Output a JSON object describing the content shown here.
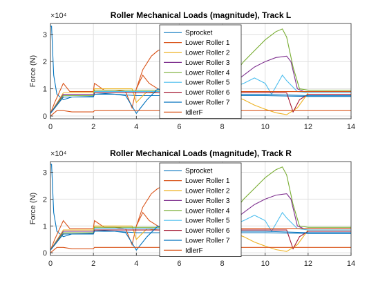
{
  "chart_data": [
    {
      "type": "line",
      "title": "Roller Mechanical Loads (magnitude), Track L",
      "xlabel": "",
      "ylabel": "Force (N)",
      "y_multiplier_label": "×10⁴",
      "xlim": [
        0,
        14
      ],
      "ylim": [
        -0.1,
        3.4
      ],
      "y_unit_scale": 10000,
      "xticks": [
        0,
        2,
        4,
        6,
        8,
        10,
        12,
        14
      ],
      "yticks": [
        0,
        1,
        2,
        3
      ],
      "grid": true,
      "legend_position": "top-center",
      "series": [
        {
          "name": "Sprocket",
          "color": "#0072BD",
          "x": [
            0,
            0.05,
            0.15,
            0.3,
            0.6,
            1.0,
            2.0,
            2.05,
            4.0,
            6.0,
            8.0,
            10.0,
            12.0,
            14.0
          ],
          "y": [
            3.3,
            3.3,
            1.5,
            0.8,
            0.6,
            0.7,
            0.72,
            0.85,
            0.75,
            0.75,
            0.75,
            0.75,
            0.72,
            0.72
          ]
        },
        {
          "name": "Lower Roller 1",
          "color": "#D95319",
          "x": [
            0,
            0.2,
            0.6,
            0.9,
            1.5,
            2.0,
            2.05,
            2.5,
            3.0,
            3.5,
            3.8,
            4.0,
            4.3,
            4.6,
            5.0,
            5.5,
            6.0,
            8.0,
            10.0,
            12.0,
            14.0
          ],
          "y": [
            0.1,
            0.5,
            1.2,
            0.9,
            0.9,
            0.9,
            1.2,
            0.95,
            0.95,
            0.9,
            0.3,
            1.0,
            1.5,
            1.2,
            1.0,
            0.9,
            0.9,
            0.9,
            0.9,
            0.9,
            0.9
          ]
        },
        {
          "name": "Lower Roller 2",
          "color": "#EDB120",
          "x": [
            0,
            0.6,
            2.0,
            2.05,
            3.0,
            3.5,
            3.8,
            4.0,
            4.5,
            5.0,
            6.0,
            8.0,
            8.5,
            9.0,
            9.5,
            10.0,
            10.5,
            11.0,
            11.5,
            12.0,
            14.0
          ],
          "y": [
            0.1,
            0.85,
            0.85,
            1.0,
            1.0,
            1.0,
            1.0,
            0.5,
            0.9,
            0.85,
            0.85,
            0.85,
            0.75,
            0.6,
            0.4,
            0.25,
            0.12,
            0.05,
            0.3,
            0.85,
            0.85
          ]
        },
        {
          "name": "Lower Roller 3",
          "color": "#7E2F8E",
          "x": [
            0,
            0.6,
            2.0,
            2.05,
            6.0,
            8.0,
            8.5,
            9.0,
            9.5,
            10.0,
            10.5,
            11.0,
            11.2,
            11.5,
            11.8,
            12.0,
            14.0
          ],
          "y": [
            0.1,
            0.8,
            0.8,
            0.9,
            0.9,
            0.9,
            1.2,
            1.5,
            1.8,
            2.0,
            2.15,
            2.2,
            2.0,
            1.0,
            0.9,
            0.9,
            0.9
          ]
        },
        {
          "name": "Lower Roller 4",
          "color": "#77AC30",
          "x": [
            0,
            0.6,
            2.0,
            2.05,
            6.0,
            8.0,
            8.5,
            9.0,
            9.5,
            10.0,
            10.5,
            10.8,
            11.0,
            11.3,
            11.6,
            12.0,
            14.0
          ],
          "y": [
            0.1,
            0.75,
            0.75,
            0.95,
            0.95,
            1.0,
            1.5,
            2.0,
            2.4,
            2.8,
            3.1,
            3.2,
            2.9,
            1.8,
            1.0,
            0.95,
            0.95
          ]
        },
        {
          "name": "Lower Roller 5",
          "color": "#4DBEEE",
          "x": [
            0,
            0.6,
            2.0,
            2.05,
            6.0,
            8.0,
            9.0,
            9.5,
            10.0,
            10.3,
            10.8,
            11.0,
            11.5,
            12.0,
            14.0
          ],
          "y": [
            0.1,
            0.7,
            0.7,
            0.9,
            0.9,
            0.9,
            1.2,
            1.4,
            1.2,
            0.8,
            1.5,
            1.3,
            0.9,
            0.85,
            0.85
          ]
        },
        {
          "name": "Lower Roller 6",
          "color": "#A2142F",
          "x": [
            0,
            0.6,
            2.0,
            2.05,
            6.0,
            8.0,
            10.0,
            11.0,
            11.3,
            11.6,
            12.0,
            14.0
          ],
          "y": [
            0.1,
            0.7,
            0.7,
            0.85,
            0.85,
            0.85,
            0.85,
            0.85,
            0.15,
            0.6,
            0.8,
            0.8
          ]
        },
        {
          "name": "Lower Roller 7",
          "color": "#0072BD",
          "x": [
            0,
            0.6,
            2.0,
            2.05,
            3.0,
            3.5,
            4.0,
            4.5,
            5.0,
            5.5,
            6.0,
            8.0,
            10.0,
            12.0,
            14.0
          ],
          "y": [
            0.1,
            0.7,
            0.7,
            0.8,
            0.8,
            0.75,
            0.1,
            0.6,
            1.0,
            0.8,
            0.8,
            0.8,
            0.8,
            0.75,
            0.75
          ]
        },
        {
          "name": "IdlerF",
          "color": "#D95319",
          "x": [
            0,
            0.3,
            0.6,
            1.0,
            2.0,
            2.05,
            3.0,
            4.0,
            5.0,
            6.0,
            8.0,
            10.0,
            12.0,
            14.0
          ],
          "y": [
            0.0,
            0.2,
            0.2,
            0.15,
            0.15,
            0.2,
            0.2,
            0.2,
            0.2,
            0.2,
            0.2,
            0.2,
            0.2,
            0.2
          ]
        },
        {
          "name": "",
          "color": "#D95319",
          "x": [
            4.0,
            4.3,
            4.7,
            5.0,
            5.3,
            5.6,
            6.0,
            6.5,
            7.0,
            8.0,
            14.0
          ],
          "y": [
            1.0,
            1.7,
            2.2,
            2.4,
            2.5,
            2.55,
            1.2,
            1.0,
            1.0,
            0.9,
            0.9
          ]
        }
      ]
    },
    {
      "type": "line",
      "title": "Roller Mechanical Loads (magnitude), Track R",
      "xlabel": "",
      "ylabel": "Force (N)",
      "y_multiplier_label": "×10⁴",
      "xlim": [
        0,
        14
      ],
      "ylim": [
        -0.1,
        3.4
      ],
      "y_unit_scale": 10000,
      "xticks": [
        0,
        2,
        4,
        6,
        8,
        10,
        12,
        14
      ],
      "yticks": [
        0,
        1,
        2,
        3
      ],
      "grid": true,
      "legend_position": "top-center",
      "series": [
        {
          "name": "Sprocket",
          "color": "#0072BD",
          "x": [
            0,
            0.05,
            0.15,
            0.3,
            0.6,
            1.0,
            2.0,
            2.05,
            4.0,
            6.0,
            8.0,
            10.0,
            12.0,
            14.0
          ],
          "y": [
            3.3,
            3.3,
            1.5,
            0.8,
            0.6,
            0.7,
            0.72,
            0.85,
            0.75,
            0.75,
            0.75,
            0.75,
            0.72,
            0.72
          ]
        },
        {
          "name": "Lower Roller 1",
          "color": "#D95319",
          "x": [
            0,
            0.2,
            0.6,
            0.9,
            1.5,
            2.0,
            2.05,
            2.5,
            3.0,
            3.5,
            3.8,
            4.0,
            4.3,
            4.6,
            5.0,
            5.5,
            6.0,
            8.0,
            10.0,
            12.0,
            14.0
          ],
          "y": [
            0.1,
            0.5,
            1.2,
            0.9,
            0.9,
            0.9,
            1.2,
            0.95,
            0.95,
            0.9,
            0.3,
            1.0,
            1.5,
            1.2,
            1.0,
            0.9,
            0.9,
            0.9,
            0.9,
            0.9,
            0.9
          ]
        },
        {
          "name": "Lower Roller 2",
          "color": "#EDB120",
          "x": [
            0,
            0.6,
            2.0,
            2.05,
            3.0,
            3.5,
            3.8,
            4.0,
            4.5,
            5.0,
            6.0,
            8.0,
            8.5,
            9.0,
            9.5,
            10.0,
            10.5,
            11.0,
            11.5,
            12.0,
            14.0
          ],
          "y": [
            0.1,
            0.85,
            0.85,
            1.0,
            1.0,
            1.0,
            1.0,
            0.5,
            0.9,
            0.85,
            0.85,
            0.85,
            0.75,
            0.6,
            0.4,
            0.25,
            0.12,
            0.05,
            0.3,
            0.85,
            0.85
          ]
        },
        {
          "name": "Lower Roller 3",
          "color": "#7E2F8E",
          "x": [
            0,
            0.6,
            2.0,
            2.05,
            6.0,
            8.0,
            8.5,
            9.0,
            9.5,
            10.0,
            10.5,
            11.0,
            11.2,
            11.5,
            11.8,
            12.0,
            14.0
          ],
          "y": [
            0.1,
            0.8,
            0.8,
            0.9,
            0.9,
            0.9,
            1.2,
            1.5,
            1.8,
            2.0,
            2.15,
            2.2,
            2.0,
            1.0,
            0.9,
            0.9,
            0.9
          ]
        },
        {
          "name": "Lower Roller 4",
          "color": "#77AC30",
          "x": [
            0,
            0.6,
            2.0,
            2.05,
            6.0,
            8.0,
            8.5,
            9.0,
            9.5,
            10.0,
            10.5,
            10.8,
            11.0,
            11.3,
            11.6,
            12.0,
            14.0
          ],
          "y": [
            0.1,
            0.75,
            0.75,
            0.95,
            0.95,
            1.0,
            1.5,
            2.0,
            2.4,
            2.8,
            3.1,
            3.2,
            2.9,
            1.8,
            1.0,
            0.95,
            0.95
          ]
        },
        {
          "name": "Lower Roller 5",
          "color": "#4DBEEE",
          "x": [
            0,
            0.6,
            2.0,
            2.05,
            6.0,
            8.0,
            9.0,
            9.5,
            10.0,
            10.3,
            10.8,
            11.0,
            11.5,
            12.0,
            14.0
          ],
          "y": [
            0.1,
            0.7,
            0.7,
            0.9,
            0.9,
            0.9,
            1.2,
            1.4,
            1.2,
            0.8,
            1.5,
            1.3,
            0.9,
            0.85,
            0.85
          ]
        },
        {
          "name": "Lower Roller 6",
          "color": "#A2142F",
          "x": [
            0,
            0.6,
            2.0,
            2.05,
            6.0,
            8.0,
            10.0,
            11.0,
            11.3,
            11.6,
            12.0,
            14.0
          ],
          "y": [
            0.1,
            0.7,
            0.7,
            0.85,
            0.85,
            0.85,
            0.85,
            0.85,
            0.15,
            0.6,
            0.8,
            0.8
          ]
        },
        {
          "name": "Lower Roller 7",
          "color": "#0072BD",
          "x": [
            0,
            0.6,
            2.0,
            2.05,
            3.0,
            3.5,
            4.0,
            4.5,
            5.0,
            5.5,
            6.0,
            8.0,
            10.0,
            12.0,
            14.0
          ],
          "y": [
            0.1,
            0.7,
            0.7,
            0.8,
            0.8,
            0.75,
            0.1,
            0.6,
            1.0,
            0.8,
            0.8,
            0.8,
            0.8,
            0.75,
            0.75
          ]
        },
        {
          "name": "IdlerF",
          "color": "#D95319",
          "x": [
            0,
            0.3,
            0.6,
            1.0,
            2.0,
            2.05,
            3.0,
            4.0,
            5.0,
            6.0,
            8.0,
            10.0,
            12.0,
            14.0
          ],
          "y": [
            0.0,
            0.2,
            0.2,
            0.15,
            0.15,
            0.2,
            0.2,
            0.2,
            0.2,
            0.2,
            0.2,
            0.2,
            0.2,
            0.2
          ]
        },
        {
          "name": "",
          "color": "#D95319",
          "x": [
            4.0,
            4.3,
            4.7,
            5.0,
            5.3,
            5.6,
            6.0,
            6.5,
            7.0,
            8.0,
            14.0
          ],
          "y": [
            1.0,
            1.7,
            2.2,
            2.4,
            2.5,
            2.55,
            1.2,
            1.0,
            1.0,
            0.9,
            0.9
          ]
        }
      ]
    }
  ]
}
